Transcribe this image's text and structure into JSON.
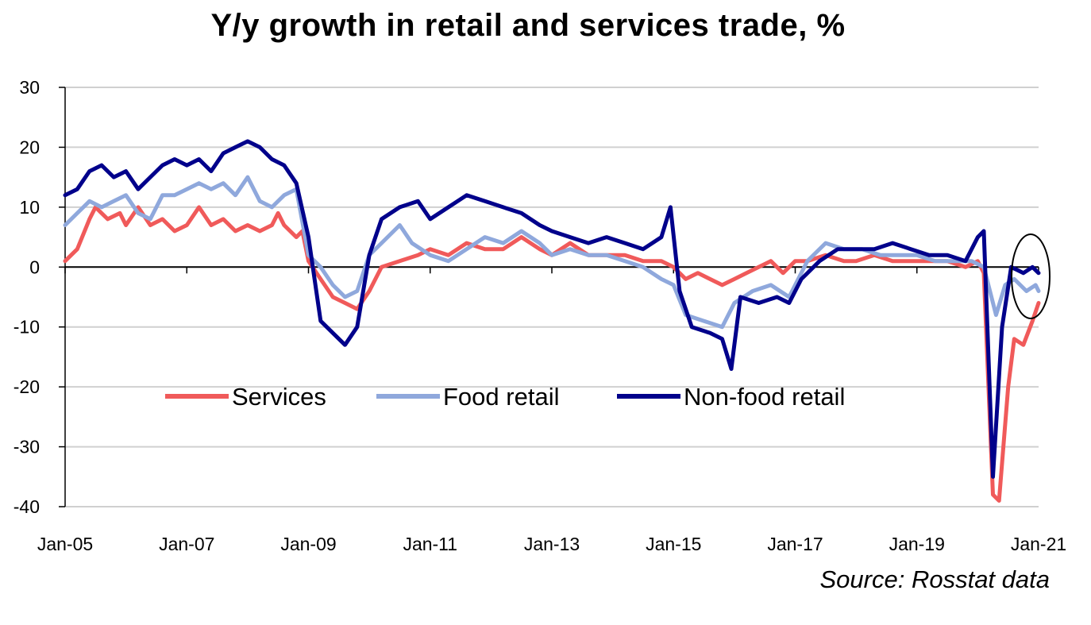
{
  "chart_data": {
    "type": "line",
    "title": "Y/y growth in retail and services trade, %",
    "source": "Source: Rosstat data",
    "xlabel": "",
    "ylabel": "",
    "xlim": [
      2005.0,
      2021.0
    ],
    "ylim": [
      -40,
      30
    ],
    "yticks": [
      30,
      20,
      10,
      0,
      -10,
      -20,
      -30,
      -40
    ],
    "xticks": [
      {
        "x": 2005,
        "label": "Jan-05"
      },
      {
        "x": 2007,
        "label": "Jan-07"
      },
      {
        "x": 2009,
        "label": "Jan-09"
      },
      {
        "x": 2011,
        "label": "Jan-11"
      },
      {
        "x": 2013,
        "label": "Jan-13"
      },
      {
        "x": 2015,
        "label": "Jan-15"
      },
      {
        "x": 2017,
        "label": "Jan-17"
      },
      {
        "x": 2019,
        "label": "Jan-19"
      },
      {
        "x": 2021,
        "label": "Jan-21"
      }
    ],
    "grid": "horizontal",
    "legend_position": "bottom-center",
    "annotation": "ellipse around latest values",
    "series": [
      {
        "name": "Services",
        "color": "#f05a5a",
        "points": [
          [
            2005.0,
            1
          ],
          [
            2005.2,
            3
          ],
          [
            2005.4,
            8
          ],
          [
            2005.5,
            10
          ],
          [
            2005.7,
            8
          ],
          [
            2005.9,
            9
          ],
          [
            2006.0,
            7
          ],
          [
            2006.2,
            10
          ],
          [
            2006.4,
            7
          ],
          [
            2006.6,
            8
          ],
          [
            2006.8,
            6
          ],
          [
            2007.0,
            7
          ],
          [
            2007.2,
            10
          ],
          [
            2007.4,
            7
          ],
          [
            2007.6,
            8
          ],
          [
            2007.8,
            6
          ],
          [
            2008.0,
            7
          ],
          [
            2008.2,
            6
          ],
          [
            2008.4,
            7
          ],
          [
            2008.5,
            9
          ],
          [
            2008.6,
            7
          ],
          [
            2008.8,
            5
          ],
          [
            2008.9,
            6
          ],
          [
            2009.0,
            1
          ],
          [
            2009.2,
            -2
          ],
          [
            2009.4,
            -5
          ],
          [
            2009.6,
            -6
          ],
          [
            2009.8,
            -7
          ],
          [
            2010.0,
            -4
          ],
          [
            2010.2,
            0
          ],
          [
            2010.5,
            1
          ],
          [
            2010.8,
            2
          ],
          [
            2011.0,
            3
          ],
          [
            2011.3,
            2
          ],
          [
            2011.6,
            4
          ],
          [
            2011.9,
            3
          ],
          [
            2012.2,
            3
          ],
          [
            2012.5,
            5
          ],
          [
            2012.8,
            3
          ],
          [
            2013.0,
            2
          ],
          [
            2013.3,
            4
          ],
          [
            2013.6,
            2
          ],
          [
            2013.9,
            2
          ],
          [
            2014.2,
            2
          ],
          [
            2014.5,
            1
          ],
          [
            2014.8,
            1
          ],
          [
            2015.0,
            0
          ],
          [
            2015.2,
            -2
          ],
          [
            2015.4,
            -1
          ],
          [
            2015.6,
            -2
          ],
          [
            2015.8,
            -3
          ],
          [
            2016.0,
            -2
          ],
          [
            2016.2,
            -1
          ],
          [
            2016.4,
            0
          ],
          [
            2016.6,
            1
          ],
          [
            2016.8,
            -1
          ],
          [
            2017.0,
            1
          ],
          [
            2017.2,
            1
          ],
          [
            2017.5,
            2
          ],
          [
            2017.8,
            1
          ],
          [
            2018.0,
            1
          ],
          [
            2018.3,
            2
          ],
          [
            2018.6,
            1
          ],
          [
            2018.9,
            1
          ],
          [
            2019.2,
            1
          ],
          [
            2019.5,
            1
          ],
          [
            2019.8,
            0
          ],
          [
            2020.0,
            1
          ],
          [
            2020.1,
            -1
          ],
          [
            2020.25,
            -38
          ],
          [
            2020.35,
            -39
          ],
          [
            2020.5,
            -20
          ],
          [
            2020.6,
            -12
          ],
          [
            2020.75,
            -13
          ],
          [
            2020.9,
            -9
          ],
          [
            2021.0,
            -6
          ]
        ]
      },
      {
        "name": "Food retail",
        "color": "#8fa8dc",
        "points": [
          [
            2005.0,
            7
          ],
          [
            2005.2,
            9
          ],
          [
            2005.4,
            11
          ],
          [
            2005.6,
            10
          ],
          [
            2005.8,
            11
          ],
          [
            2006.0,
            12
          ],
          [
            2006.2,
            9
          ],
          [
            2006.4,
            8
          ],
          [
            2006.6,
            12
          ],
          [
            2006.8,
            12
          ],
          [
            2007.0,
            13
          ],
          [
            2007.2,
            14
          ],
          [
            2007.4,
            13
          ],
          [
            2007.6,
            14
          ],
          [
            2007.8,
            12
          ],
          [
            2008.0,
            15
          ],
          [
            2008.2,
            11
          ],
          [
            2008.4,
            10
          ],
          [
            2008.6,
            12
          ],
          [
            2008.8,
            13
          ],
          [
            2009.0,
            2
          ],
          [
            2009.2,
            0
          ],
          [
            2009.4,
            -3
          ],
          [
            2009.6,
            -5
          ],
          [
            2009.8,
            -4
          ],
          [
            2010.0,
            2
          ],
          [
            2010.2,
            4
          ],
          [
            2010.5,
            7
          ],
          [
            2010.7,
            4
          ],
          [
            2011.0,
            2
          ],
          [
            2011.3,
            1
          ],
          [
            2011.6,
            3
          ],
          [
            2011.9,
            5
          ],
          [
            2012.2,
            4
          ],
          [
            2012.5,
            6
          ],
          [
            2012.8,
            4
          ],
          [
            2013.0,
            2
          ],
          [
            2013.3,
            3
          ],
          [
            2013.6,
            2
          ],
          [
            2013.9,
            2
          ],
          [
            2014.2,
            1
          ],
          [
            2014.5,
            0
          ],
          [
            2014.8,
            -2
          ],
          [
            2015.0,
            -3
          ],
          [
            2015.2,
            -8
          ],
          [
            2015.5,
            -9
          ],
          [
            2015.8,
            -10
          ],
          [
            2016.0,
            -6
          ],
          [
            2016.3,
            -4
          ],
          [
            2016.6,
            -3
          ],
          [
            2016.9,
            -5
          ],
          [
            2017.2,
            1
          ],
          [
            2017.5,
            4
          ],
          [
            2017.8,
            3
          ],
          [
            2018.1,
            3
          ],
          [
            2018.4,
            2
          ],
          [
            2018.7,
            2
          ],
          [
            2019.0,
            2
          ],
          [
            2019.3,
            1
          ],
          [
            2019.6,
            1
          ],
          [
            2019.9,
            1
          ],
          [
            2020.1,
            0
          ],
          [
            2020.3,
            -8
          ],
          [
            2020.45,
            -3
          ],
          [
            2020.6,
            -2
          ],
          [
            2020.8,
            -4
          ],
          [
            2020.95,
            -3
          ],
          [
            2021.0,
            -4
          ]
        ]
      },
      {
        "name": "Non-food retail",
        "color": "#00008b",
        "points": [
          [
            2005.0,
            12
          ],
          [
            2005.2,
            13
          ],
          [
            2005.4,
            16
          ],
          [
            2005.6,
            17
          ],
          [
            2005.8,
            15
          ],
          [
            2006.0,
            16
          ],
          [
            2006.2,
            13
          ],
          [
            2006.4,
            15
          ],
          [
            2006.6,
            17
          ],
          [
            2006.8,
            18
          ],
          [
            2007.0,
            17
          ],
          [
            2007.2,
            18
          ],
          [
            2007.4,
            16
          ],
          [
            2007.6,
            19
          ],
          [
            2007.8,
            20
          ],
          [
            2008.0,
            21
          ],
          [
            2008.2,
            20
          ],
          [
            2008.4,
            18
          ],
          [
            2008.6,
            17
          ],
          [
            2008.8,
            14
          ],
          [
            2009.0,
            5
          ],
          [
            2009.2,
            -9
          ],
          [
            2009.4,
            -11
          ],
          [
            2009.6,
            -13
          ],
          [
            2009.8,
            -10
          ],
          [
            2010.0,
            2
          ],
          [
            2010.2,
            8
          ],
          [
            2010.5,
            10
          ],
          [
            2010.8,
            11
          ],
          [
            2011.0,
            8
          ],
          [
            2011.3,
            10
          ],
          [
            2011.6,
            12
          ],
          [
            2011.9,
            11
          ],
          [
            2012.2,
            10
          ],
          [
            2012.5,
            9
          ],
          [
            2012.8,
            7
          ],
          [
            2013.0,
            6
          ],
          [
            2013.3,
            5
          ],
          [
            2013.6,
            4
          ],
          [
            2013.9,
            5
          ],
          [
            2014.2,
            4
          ],
          [
            2014.5,
            3
          ],
          [
            2014.8,
            5
          ],
          [
            2014.95,
            10
          ],
          [
            2015.1,
            -4
          ],
          [
            2015.3,
            -10
          ],
          [
            2015.6,
            -11
          ],
          [
            2015.8,
            -12
          ],
          [
            2015.95,
            -17
          ],
          [
            2016.1,
            -5
          ],
          [
            2016.4,
            -6
          ],
          [
            2016.7,
            -5
          ],
          [
            2016.9,
            -6
          ],
          [
            2017.1,
            -2
          ],
          [
            2017.4,
            1
          ],
          [
            2017.7,
            3
          ],
          [
            2018.0,
            3
          ],
          [
            2018.3,
            3
          ],
          [
            2018.6,
            4
          ],
          [
            2018.9,
            3
          ],
          [
            2019.2,
            2
          ],
          [
            2019.5,
            2
          ],
          [
            2019.8,
            1
          ],
          [
            2020.0,
            5
          ],
          [
            2020.1,
            6
          ],
          [
            2020.25,
            -35
          ],
          [
            2020.4,
            -10
          ],
          [
            2020.55,
            0
          ],
          [
            2020.75,
            -1
          ],
          [
            2020.9,
            0
          ],
          [
            2021.0,
            -1
          ]
        ]
      }
    ]
  }
}
